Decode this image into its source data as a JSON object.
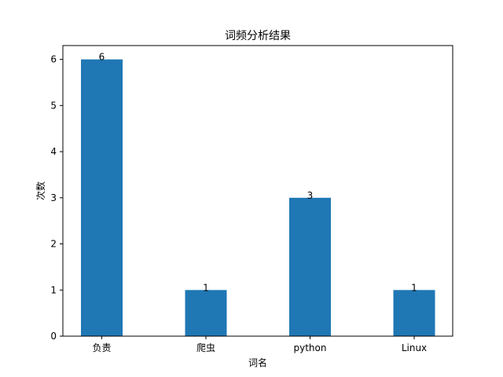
{
  "chart_data": {
    "type": "bar",
    "title": "词频分析结果",
    "xlabel": "词名",
    "ylabel": "次数",
    "categories": [
      "负责",
      "爬虫",
      "python",
      "Linux"
    ],
    "values": [
      6,
      1,
      3,
      1
    ],
    "ylim": [
      0,
      6.3
    ],
    "yticks": [
      0,
      1,
      2,
      3,
      4,
      5,
      6
    ],
    "bar_color": "#1f77b4",
    "grid": false,
    "legend": "none"
  }
}
